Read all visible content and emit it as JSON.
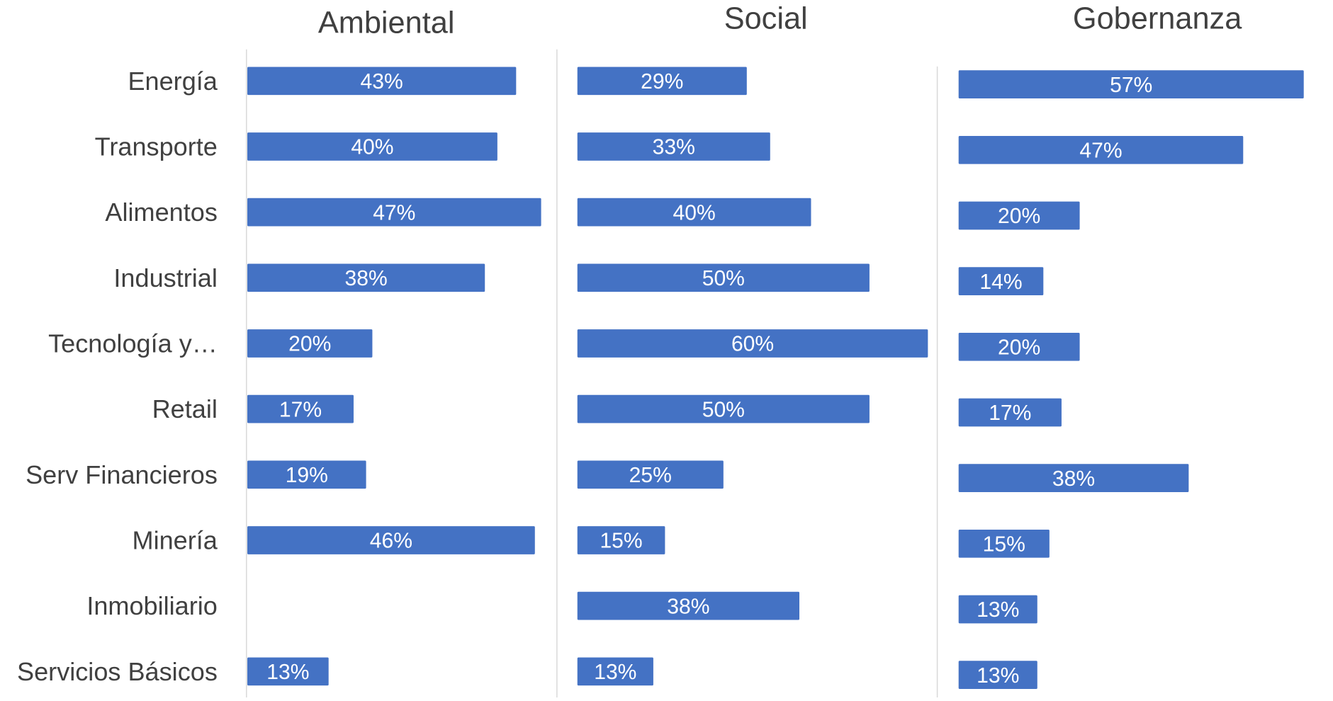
{
  "chart_data": {
    "type": "bar",
    "orientation": "horizontal",
    "layout": "small-multiples",
    "categories": [
      "Energía",
      "Transporte",
      "Alimentos",
      "Industrial",
      "Tecnología y…",
      "Retail",
      "Serv Financieros",
      "Minería",
      "Inmobiliario",
      "Servicios Básicos"
    ],
    "panels": [
      {
        "title": "Ambiental",
        "values": [
          43,
          40,
          47,
          38,
          20,
          17,
          19,
          46,
          null,
          13
        ],
        "labels": [
          "43%",
          "40%",
          "47%",
          "38%",
          "20%",
          "17%",
          "19%",
          "46%",
          "",
          "13%"
        ]
      },
      {
        "title": "Social",
        "values": [
          29,
          33,
          40,
          50,
          60,
          50,
          25,
          15,
          38,
          13
        ],
        "labels": [
          "29%",
          "33%",
          "40%",
          "50%",
          "60%",
          "50%",
          "25%",
          "15%",
          "38%",
          "13%"
        ]
      },
      {
        "title": "Gobernanza",
        "values": [
          57,
          47,
          20,
          14,
          20,
          17,
          38,
          15,
          13,
          13
        ],
        "labels": [
          "57%",
          "47%",
          "20%",
          "14%",
          "20%",
          "17%",
          "38%",
          "15%",
          "13%",
          "13%"
        ]
      }
    ],
    "bar_color": "#4472C4",
    "label_color": "#ffffff",
    "text_color": "#404040",
    "separator_color": "#D9D9D9",
    "grid": false,
    "legend": "none"
  }
}
